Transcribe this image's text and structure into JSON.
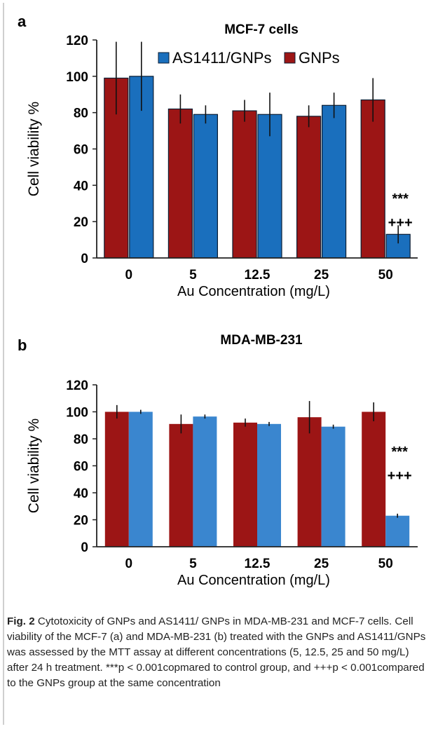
{
  "chart_data": [
    {
      "type": "bar",
      "panel": "a",
      "title": "MCF-7 cells",
      "xlabel": "Au Concentration (mg/L)",
      "ylabel": "Cell viability %",
      "categories": [
        "0",
        "5",
        "12.5",
        "25",
        "50"
      ],
      "ylim": [
        0,
        120
      ],
      "yticks": [
        0,
        20,
        40,
        60,
        80,
        100,
        120
      ],
      "legend": {
        "placement": "top",
        "entries": [
          "AS1411/GNPs",
          "GNPs"
        ]
      },
      "grid": false,
      "series": [
        {
          "name": "GNPs",
          "color": "#9c1515",
          "values": [
            99,
            82,
            81,
            78,
            87
          ],
          "errors": [
            20,
            8,
            6,
            6,
            12
          ]
        },
        {
          "name": "AS1411/GNPs",
          "color": "#1a6fbd",
          "values": [
            100,
            79,
            79,
            84,
            13
          ],
          "errors": [
            19,
            5,
            12,
            7,
            5
          ]
        }
      ],
      "annotations": [
        {
          "category": "50",
          "series": "AS1411/GNPs",
          "lines": [
            "***",
            "+++"
          ]
        }
      ]
    },
    {
      "type": "bar",
      "panel": "b",
      "title": "MDA-MB-231",
      "xlabel": "Au Concentration (mg/L)",
      "ylabel": "Cell viability %",
      "categories": [
        "0",
        "5",
        "12.5",
        "25",
        "50"
      ],
      "ylim": [
        0,
        120
      ],
      "yticks": [
        0,
        20,
        40,
        60,
        80,
        100,
        120
      ],
      "grid": false,
      "series": [
        {
          "name": "",
          "color": "#9c1515",
          "values": [
            100,
            91,
            92,
            96,
            100
          ],
          "errors": [
            5,
            7,
            3,
            12,
            7
          ]
        },
        {
          "name": "",
          "color": "#3a86cf",
          "values": [
            100,
            96.5,
            91,
            89,
            23
          ],
          "errors": [
            1.5,
            1.5,
            1.5,
            1.5,
            1.5
          ]
        }
      ],
      "annotations": [
        {
          "category": "50",
          "series": 1,
          "lines": [
            "***",
            "+++"
          ]
        }
      ]
    }
  ],
  "caption": {
    "label": "Fig. 2",
    "text": "Cytotoxicity of GNPs and AS1411/ GNPs in MDA-MB-231 and MCF-7 cells. Cell viability of the MCF-7 (a) and MDA-MB-231 (b) treated with the GNPs and AS1411/GNPs was assessed by the MTT assay at different concentrations (5, 12.5, 25 and 50 mg/L) after 24 h treatment. ***p < 0.001copmared to control group, and +++p < 0.001compared to the GNPs group at the same concentration"
  }
}
